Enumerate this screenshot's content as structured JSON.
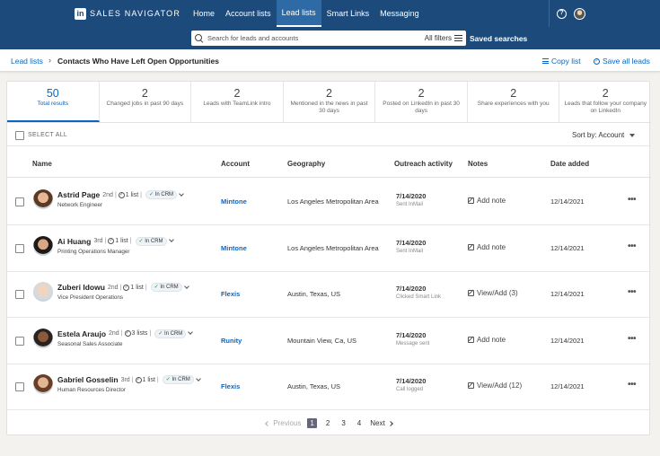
{
  "nav": {
    "logo": "in",
    "brand": "SALES NAVIGATOR",
    "links": [
      {
        "label": "Home",
        "active": false
      },
      {
        "label": "Account lists",
        "active": false
      },
      {
        "label": "Lead lists",
        "active": true
      },
      {
        "label": "Smart Links",
        "active": false
      },
      {
        "label": "Messaging",
        "active": false
      }
    ],
    "help_glyph": "?"
  },
  "search": {
    "placeholder": "Search for leads and accounts",
    "all_filters": "All filters",
    "saved_searches": "Saved searches"
  },
  "breadcrumb": {
    "root": "Lead lists",
    "separator": "›",
    "current": "Contacts Who Have Left Open Opportunities",
    "copy_list": "Copy list",
    "save_all": "Save all leads",
    "check_glyph": "✓"
  },
  "stats": [
    {
      "num": "50",
      "label": "Total results",
      "active": true
    },
    {
      "num": "2",
      "label": "Changed jobs in past 90 days"
    },
    {
      "num": "2",
      "label": "Leads with TeamLink intro"
    },
    {
      "num": "2",
      "label": "Mentioned in the news in past 30 days"
    },
    {
      "num": "2",
      "label": "Posted on LinkedIn in past 30 days"
    },
    {
      "num": "2",
      "label": "Share experiences with you"
    },
    {
      "num": "2",
      "label": "Leads that follow your company on LinkedIn"
    }
  ],
  "select_all": "SELECT ALL",
  "sort": {
    "label": "Sort by:",
    "value": "Account"
  },
  "columns": {
    "name": "Name",
    "account": "Account",
    "geography": "Geography",
    "outreach": "Outreach activity",
    "notes": "Notes",
    "date_added": "Date added"
  },
  "in_crm": "In CRM",
  "crm_tick": "✓",
  "list_glyph": "✓",
  "more_glyph": "•••",
  "leads": [
    {
      "name": "Astrid Page",
      "degree": "2nd",
      "lists": "1 list",
      "title": "Network Engineer",
      "account": "Mintone",
      "geography": "Los Angeles Metropolitan Area",
      "outreach_date": "7/14/2020",
      "outreach_note": "Sent InMail",
      "notes": "Add note",
      "date_added": "12/14/2021",
      "skin": "#e8b896",
      "hair": "#5a3a22"
    },
    {
      "name": "Ai Huang",
      "degree": "3rd",
      "lists": "1 list",
      "title": "Printing Operations Manager",
      "account": "Mintone",
      "geography": "Los Angeles Metropolitan Area",
      "outreach_date": "7/14/2020",
      "outreach_note": "Sent InMail",
      "notes": "Add note",
      "date_added": "12/14/2021",
      "skin": "#d9a882",
      "hair": "#1e1a18"
    },
    {
      "name": "Zuberi Idowu",
      "degree": "2nd",
      "lists": "1 list",
      "title": "Vice President Operations",
      "account": "Flexis",
      "geography": "Austin, Texas, US",
      "outreach_date": "7/14/2020",
      "outreach_note": "Clicked Smart Link",
      "notes": "View/Add (3)",
      "date_added": "12/14/2021",
      "skin": "#f2d4bf",
      "hair": "#d9d9d9"
    },
    {
      "name": "Estela Araujo",
      "degree": "2nd",
      "lists": "3 lists",
      "title": "Seasonal Sales Associate",
      "account": "Runity",
      "geography": "Mountain View, Ca, US",
      "outreach_date": "7/14/2020",
      "outreach_note": "Message sent",
      "notes": "Add note",
      "date_added": "12/14/2021",
      "skin": "#8a5a3a",
      "hair": "#2a2220"
    },
    {
      "name": "Gabriel Gosselin",
      "degree": "3rd",
      "lists": "1 list",
      "title": "Human Resources Director",
      "account": "Flexis",
      "geography": "Austin, Texas, US",
      "outreach_date": "7/14/2020",
      "outreach_note": "Call logged",
      "notes": "View/Add (12)",
      "date_added": "12/14/2021",
      "skin": "#e3b795",
      "hair": "#6a3e25"
    }
  ],
  "pager": {
    "previous": "Previous",
    "pages": [
      "1",
      "2",
      "3",
      "4"
    ],
    "current": "1",
    "next": "Next"
  }
}
